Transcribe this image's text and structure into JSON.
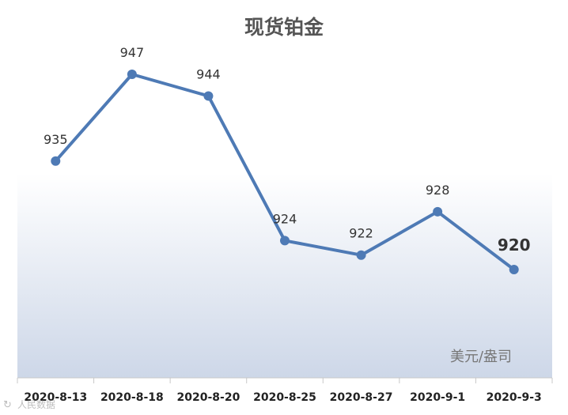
{
  "chart_data": {
    "type": "line",
    "title": "现货铂金",
    "unit_label": "美元/盎司",
    "categories": [
      "2020-8-13",
      "2020-8-18",
      "2020-8-20",
      "2020-8-25",
      "2020-8-27",
      "2020-9-1",
      "2020-9-3"
    ],
    "values": [
      935,
      947,
      944,
      924,
      922,
      928,
      920
    ],
    "data_labels": [
      "935",
      "947",
      "944",
      "924",
      "922",
      "928",
      "920"
    ],
    "ylim": [
      900,
      950
    ],
    "grid": false,
    "legend": "none"
  },
  "watermark": "人民数据",
  "colors": {
    "line": "#4e7ab5",
    "title": "#555555",
    "label": "#333333",
    "unit": "#777777",
    "gradient_top": "#ffffff",
    "gradient_bottom": "#cdd7e8"
  }
}
